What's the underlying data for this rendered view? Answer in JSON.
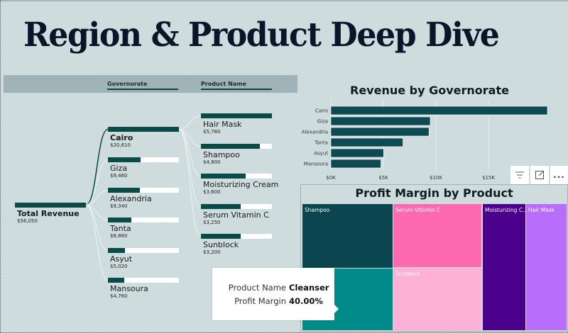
{
  "page": {
    "title": "Region & Product Deep Dive"
  },
  "decomposition_tree": {
    "level_headers": [
      "Governorate",
      "Product Name"
    ],
    "root": {
      "label": "Total Revenue",
      "value": "$56,050",
      "fill": 1.0
    },
    "governorates": [
      {
        "label": "Cairo",
        "value": "$20,610",
        "fill": 1.0,
        "expanded": true
      },
      {
        "label": "Giza",
        "value": "$9,460",
        "fill": 0.46
      },
      {
        "label": "Alexandria",
        "value": "$9,340",
        "fill": 0.45
      },
      {
        "label": "Tanta",
        "value": "$6,860",
        "fill": 0.33
      },
      {
        "label": "Asyut",
        "value": "$5,020",
        "fill": 0.24
      },
      {
        "label": "Mansoura",
        "value": "$4,760",
        "fill": 0.23
      }
    ],
    "products": [
      {
        "label": "Hair Mask",
        "value": "$5,760",
        "fill": 1.0
      },
      {
        "label": "Shampoo",
        "value": "$4,800",
        "fill": 0.83
      },
      {
        "label": "Moisturizing Cream",
        "value": "$3,600",
        "fill": 0.625
      },
      {
        "label": "Serum Vitamin C",
        "value": "$3,250",
        "fill": 0.56
      },
      {
        "label": "Sunblock",
        "value": "$3,200",
        "fill": 0.555
      }
    ]
  },
  "visual_header": {
    "icons": [
      "filter-icon",
      "focus-mode-icon",
      "more-options-icon"
    ],
    "more_label": "..."
  },
  "chart_data": [
    {
      "type": "bar",
      "orientation": "horizontal",
      "title": "Revenue  by Governorate",
      "categories": [
        "Cairo",
        "Giza",
        "Alexandria",
        "Tanta",
        "Asyut",
        "Mansoura"
      ],
      "values": [
        20610,
        9460,
        9340,
        6860,
        5020,
        4760
      ],
      "xlim": [
        0,
        20000
      ],
      "xticks": [
        0,
        5000,
        10000,
        15000
      ],
      "xtick_labels": [
        "$0K",
        "$5K",
        "$10K",
        "$15K"
      ],
      "grid": true,
      "color": "#0d4a52"
    },
    {
      "type": "treemap",
      "title": "Profit Margin by Product",
      "items": [
        {
          "label": "Shampoo",
          "color": "#0b4650"
        },
        {
          "label": "Cleanser",
          "color": "#008b8b",
          "show_label": false
        },
        {
          "label": "Serum Vitamin C",
          "color": "#ff69b0"
        },
        {
          "label": "Sunblock",
          "color": "#feb1d7"
        },
        {
          "label": "Moisturizing C...",
          "color": "#4a008a"
        },
        {
          "label": "Hair Mask",
          "color": "#b86dfb"
        }
      ]
    }
  ],
  "tooltip": {
    "rows": [
      {
        "key": "Product Name",
        "value": "Cleanser"
      },
      {
        "key": "Profit Margin",
        "value": "40.00%"
      }
    ]
  }
}
